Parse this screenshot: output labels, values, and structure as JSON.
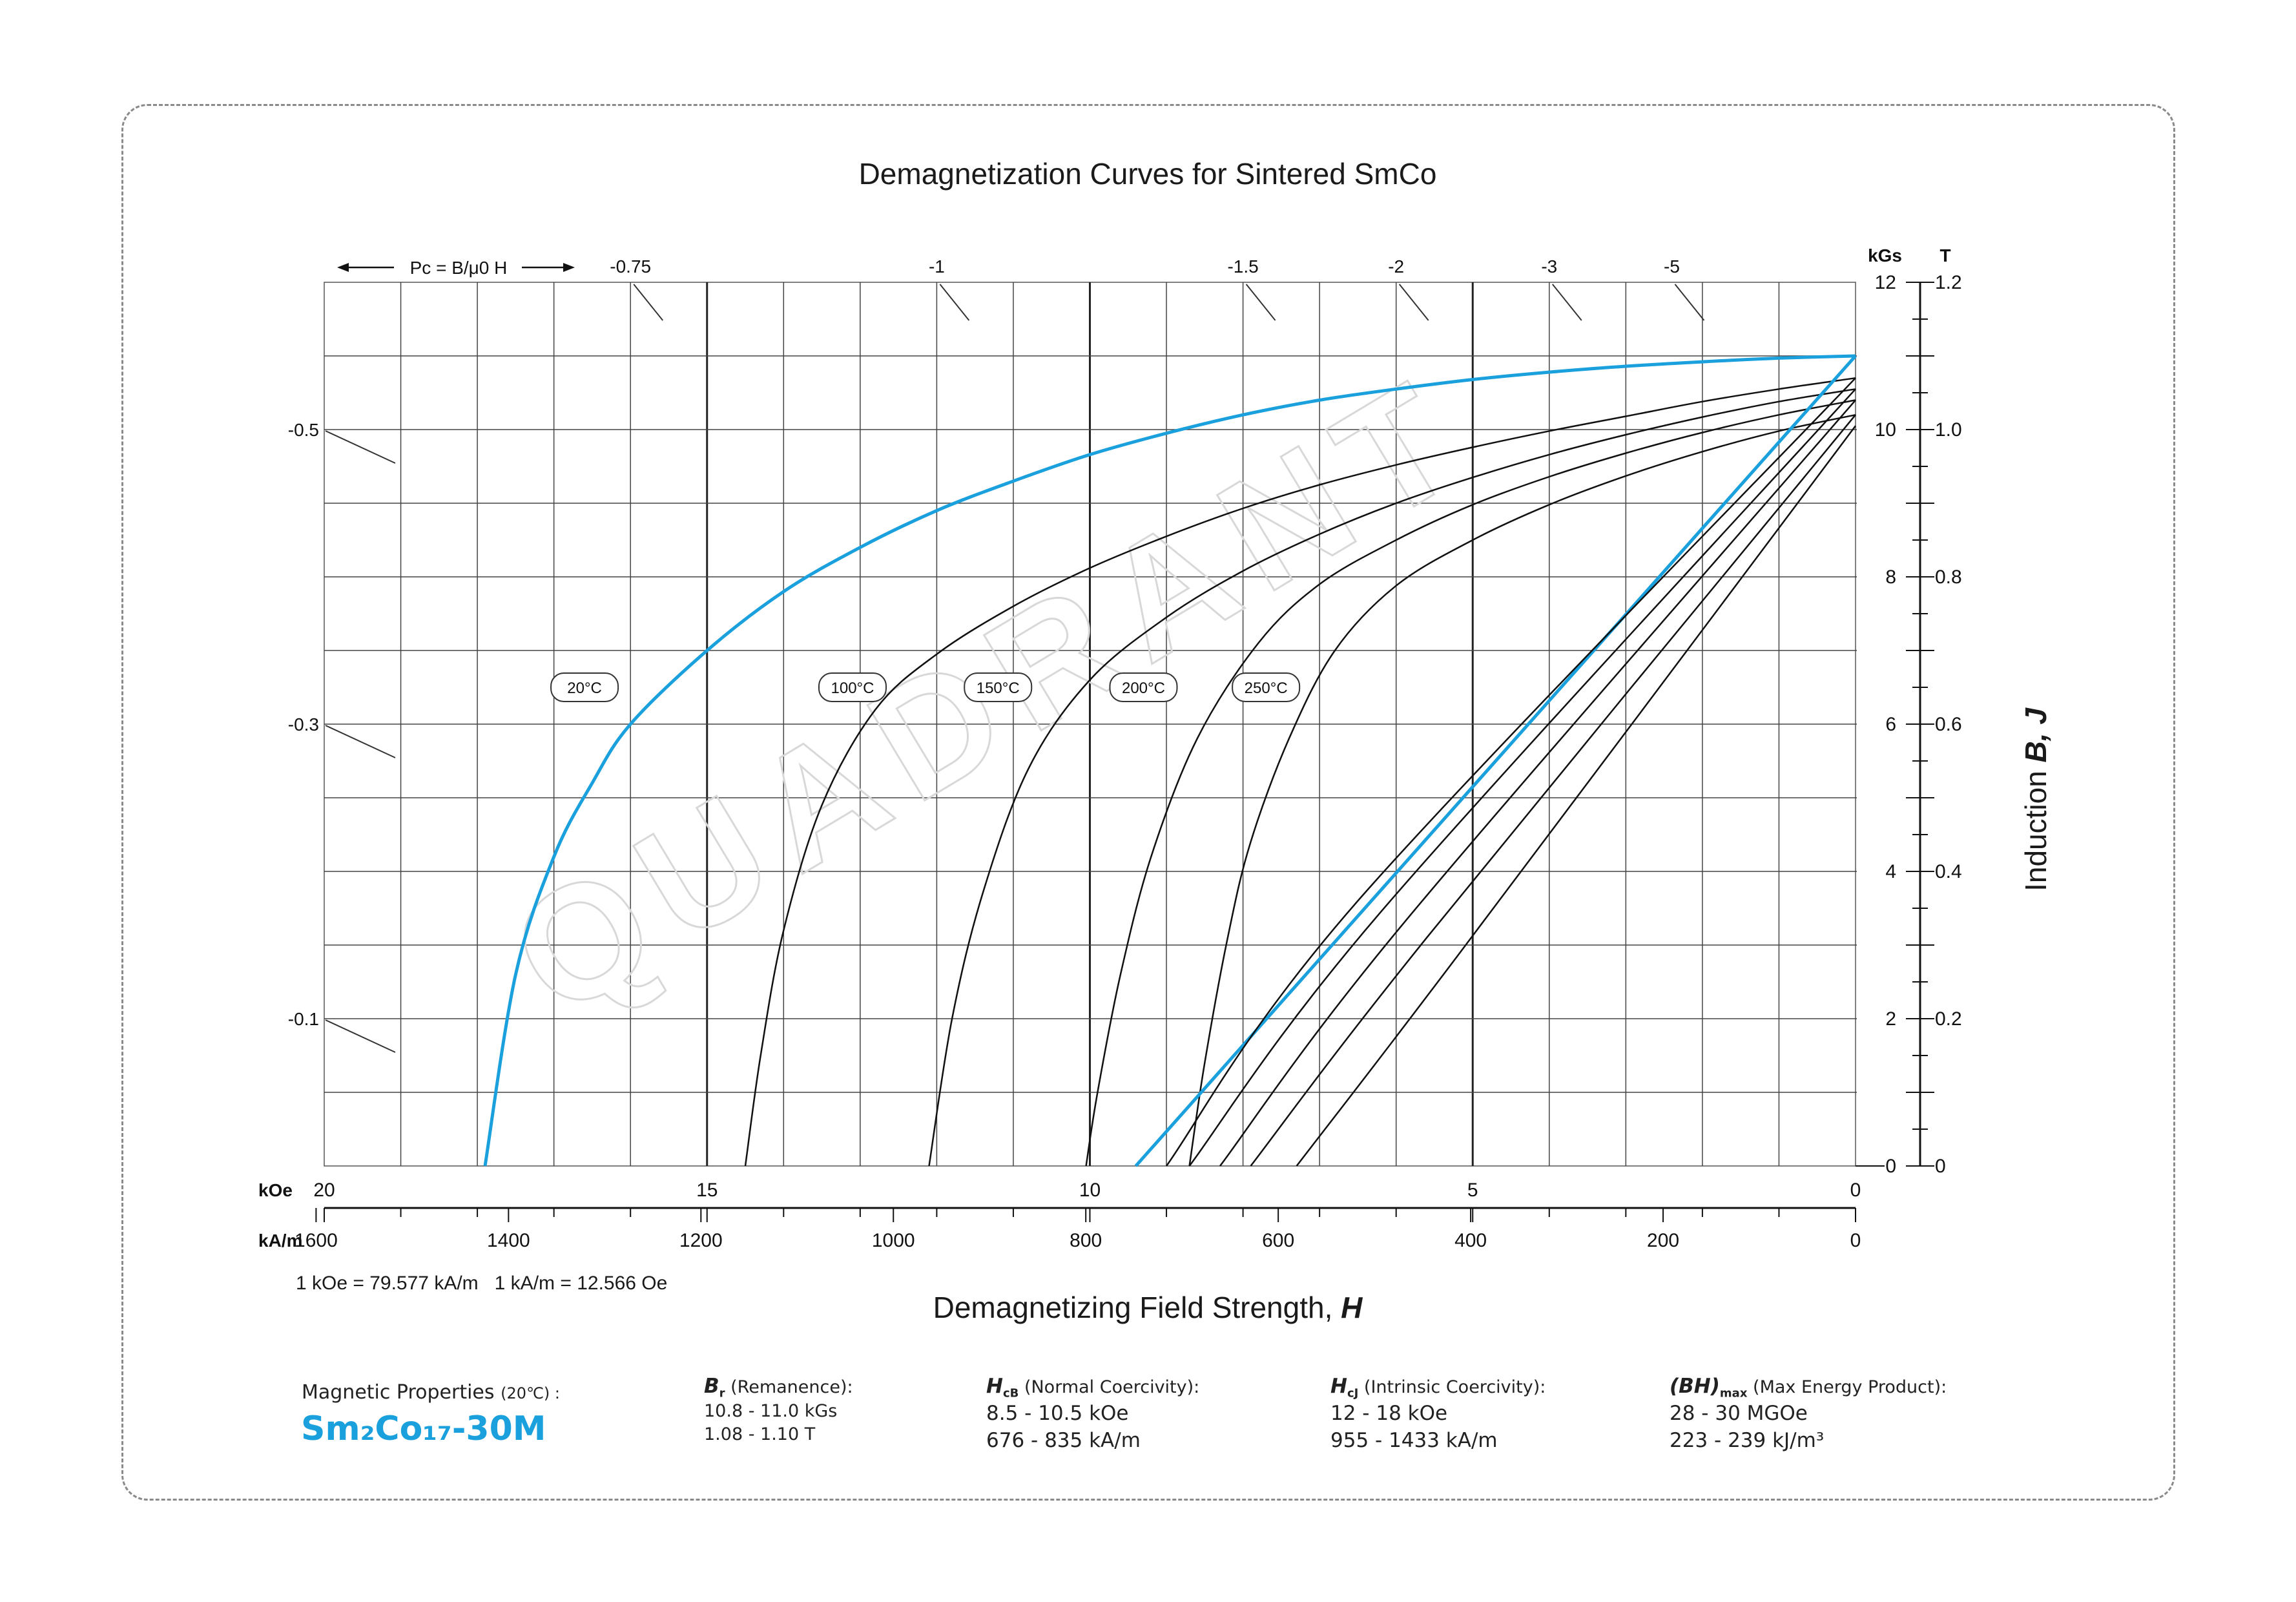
{
  "chart_data": {
    "type": "line",
    "title": "Demagnetization Curves for Sintered SmCo",
    "xlabel": "Demagnetizing Field Strength, H",
    "ylabel": "Induction B, J",
    "x_unit_primary": "kOe",
    "x_unit_secondary": "kA/m",
    "y_unit_primary": "kGs",
    "y_unit_secondary": "T",
    "xlim": [
      20,
      0
    ],
    "ylim": [
      0,
      12
    ],
    "x_ticks_koe": [
      "20",
      "15",
      "10",
      "5",
      "0"
    ],
    "x_ticks_kam": [
      "1600",
      "1400",
      "1200",
      "1000",
      "800",
      "600",
      "400",
      "200",
      "0"
    ],
    "y_ticks_kgs": [
      "0",
      "2",
      "4",
      "6",
      "8",
      "10",
      "12"
    ],
    "y_ticks_t": [
      "0",
      "0.2",
      "0.4",
      "0.6",
      "0.8",
      "1.0",
      "1.2"
    ],
    "conversion_note": "1 kOe = 79.577 kA/m   1 kA/m = 12.566 Oe",
    "permeance_header": "Pc = B/μ0 H",
    "permeance_top": [
      {
        "label": "-0.75",
        "H": 16.0
      },
      {
        "label": "-1",
        "H": 12.0
      },
      {
        "label": "-1.5",
        "H": 8.0
      },
      {
        "label": "-2",
        "H": 6.0
      },
      {
        "label": "-3",
        "H": 4.0
      },
      {
        "label": "-5",
        "H": 2.4
      }
    ],
    "permeance_left": [
      {
        "label": "-0.5",
        "B": 10.0
      },
      {
        "label": "-0.3",
        "B": 6.0
      },
      {
        "label": "-0.1",
        "B": 2.0
      }
    ],
    "grid": true,
    "series": [
      {
        "name": "20°C",
        "color": "#1aa0dc",
        "curve": "J",
        "points": [
          [
            0,
            11
          ],
          [
            1,
            10.97
          ],
          [
            2,
            10.92
          ],
          [
            3,
            10.86
          ],
          [
            4,
            10.78
          ],
          [
            5,
            10.68
          ],
          [
            6,
            10.55
          ],
          [
            7,
            10.4
          ],
          [
            8,
            10.2
          ],
          [
            9,
            9.95
          ],
          [
            10,
            9.66
          ],
          [
            11,
            9.3
          ],
          [
            12,
            8.9
          ],
          [
            13,
            8.4
          ],
          [
            14,
            7.8
          ],
          [
            15,
            7.0
          ],
          [
            16,
            6.0
          ],
          [
            16.5,
            5.2
          ],
          [
            17,
            4.2
          ],
          [
            17.5,
            2.6
          ],
          [
            17.9,
            0
          ]
        ]
      },
      {
        "name": "100°C",
        "color": "#111111",
        "curve": "J",
        "points": [
          [
            0,
            10.7
          ],
          [
            1,
            10.55
          ],
          [
            2,
            10.38
          ],
          [
            3,
            10.18
          ],
          [
            4,
            9.98
          ],
          [
            5,
            9.76
          ],
          [
            6,
            9.52
          ],
          [
            7,
            9.25
          ],
          [
            8,
            8.93
          ],
          [
            9,
            8.55
          ],
          [
            10,
            8.12
          ],
          [
            11,
            7.6
          ],
          [
            12,
            6.95
          ],
          [
            12.8,
            6.2
          ],
          [
            13.5,
            4.9
          ],
          [
            14.0,
            3.2
          ],
          [
            14.3,
            1.5
          ],
          [
            14.5,
            0
          ]
        ]
      },
      {
        "name": "150°C",
        "color": "#111111",
        "curve": "J",
        "points": [
          [
            0,
            10.55
          ],
          [
            1,
            10.38
          ],
          [
            2,
            10.17
          ],
          [
            3,
            9.93
          ],
          [
            4,
            9.66
          ],
          [
            5,
            9.35
          ],
          [
            6,
            9.0
          ],
          [
            7,
            8.58
          ],
          [
            8,
            8.08
          ],
          [
            9,
            7.45
          ],
          [
            10,
            6.6
          ],
          [
            10.8,
            5.4
          ],
          [
            11.4,
            3.7
          ],
          [
            11.8,
            2.0
          ],
          [
            12.1,
            0
          ]
        ]
      },
      {
        "name": "200°C",
        "color": "#111111",
        "curve": "J",
        "points": [
          [
            0,
            10.4
          ],
          [
            1,
            10.2
          ],
          [
            2,
            9.96
          ],
          [
            3,
            9.68
          ],
          [
            4,
            9.36
          ],
          [
            5,
            8.98
          ],
          [
            6,
            8.5
          ],
          [
            7,
            7.9
          ],
          [
            7.8,
            7.1
          ],
          [
            8.6,
            5.8
          ],
          [
            9.2,
            4.2
          ],
          [
            9.6,
            2.6
          ],
          [
            9.9,
            1.0
          ],
          [
            10.05,
            0
          ]
        ]
      },
      {
        "name": "250°C",
        "color": "#111111",
        "curve": "J",
        "points": [
          [
            0,
            10.2
          ],
          [
            1,
            9.98
          ],
          [
            2,
            9.7
          ],
          [
            3,
            9.37
          ],
          [
            4,
            8.98
          ],
          [
            5,
            8.5
          ],
          [
            6,
            7.88
          ],
          [
            6.8,
            7.0
          ],
          [
            7.4,
            5.8
          ],
          [
            7.9,
            4.4
          ],
          [
            8.2,
            3.1
          ],
          [
            8.5,
            1.4
          ],
          [
            8.7,
            0
          ]
        ]
      },
      {
        "name": "20°C",
        "color": "#1aa0dc",
        "curve": "B",
        "points": [
          [
            0,
            11
          ],
          [
            9.4,
            0
          ]
        ]
      },
      {
        "name": "100°C",
        "color": "#111111",
        "curve": "B",
        "points": [
          [
            0,
            10.7
          ],
          [
            6.5,
            3.6
          ],
          [
            9.0,
            0
          ]
        ]
      },
      {
        "name": "150°C",
        "color": "#111111",
        "curve": "B",
        "points": [
          [
            0,
            10.55
          ],
          [
            6.2,
            3.45
          ],
          [
            8.7,
            0
          ]
        ]
      },
      {
        "name": "200°C",
        "color": "#111111",
        "curve": "B",
        "points": [
          [
            0,
            10.4
          ],
          [
            5.9,
            3.3
          ],
          [
            8.3,
            0
          ]
        ]
      },
      {
        "name": "250°C",
        "color": "#111111",
        "curve": "B",
        "points": [
          [
            0,
            10.2
          ],
          [
            5.6,
            3.1
          ],
          [
            7.9,
            0
          ]
        ]
      },
      {
        "name": "",
        "color": "#111111",
        "curve": "B",
        "points": [
          [
            0,
            10.05
          ],
          [
            5.2,
            2.85
          ],
          [
            7.3,
            0
          ]
        ]
      }
    ],
    "curve_labels": [
      {
        "text": "20°C",
        "H": 16.6,
        "B": 6.5
      },
      {
        "text": "100°C",
        "H": 13.1,
        "B": 6.5
      },
      {
        "text": "150°C",
        "H": 11.2,
        "B": 6.5
      },
      {
        "text": "200°C",
        "H": 9.3,
        "B": 6.5
      },
      {
        "text": "250°C",
        "H": 7.7,
        "B": 6.5
      }
    ]
  },
  "watermark": "QUADRANT",
  "properties": {
    "label": "Magnetic Properties",
    "temp": "(20℃) :",
    "grade": "Sm₂Co₁₇-30M",
    "br": {
      "symbol": "B",
      "sub": "r",
      "desc": "(Remanence):",
      "v1": "10.8 - 11.0 kGs",
      "v2": "1.08 - 1.10 T"
    },
    "hcb": {
      "symbol": "H",
      "sub": "cB",
      "desc": "(Normal Coercivity):",
      "v1": "8.5 - 10.5 kOe",
      "v2": "676 - 835 kA/m"
    },
    "hcj": {
      "symbol": "H",
      "sub": "cJ",
      "desc": "(Intrinsic Coercivity):",
      "v1": "12 - 18 kOe",
      "v2": "955 - 1433 kA/m"
    },
    "bh": {
      "symbol": "(BH)",
      "sub": "max",
      "desc": "(Max Energy Product):",
      "v1": "28 - 30 MGOe",
      "v2": "223 - 239 kJ/m³"
    }
  }
}
